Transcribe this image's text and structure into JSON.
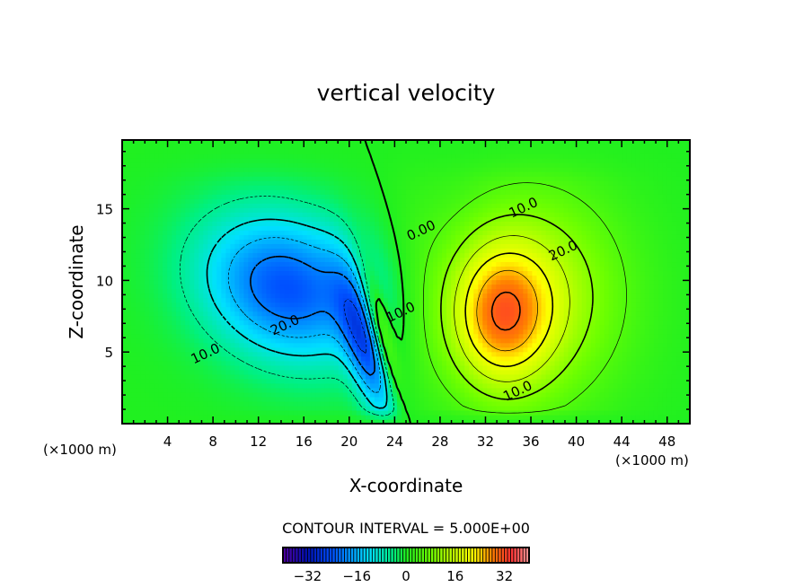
{
  "chart_data": {
    "type": "heatmap",
    "subtype": "filled-contour",
    "title": "vertical velocity",
    "xlabel": "X-coordinate",
    "ylabel": "Z-coordinate",
    "x_unit_label": "(×1000 m)",
    "y_unit_label": "(×1000 m)",
    "xlim": [
      0,
      50
    ],
    "ylim": [
      0,
      19.8
    ],
    "x_ticks": [
      "4",
      "8",
      "12",
      "16",
      "20",
      "24",
      "28",
      "32",
      "36",
      "40",
      "44",
      "48"
    ],
    "y_ticks": [
      "5",
      "10",
      "15"
    ],
    "contour_interval_text": "CONTOUR INTERVAL = 5.000E+00",
    "contour_levels": [
      -25,
      -20,
      -15,
      -10,
      -5,
      0,
      5,
      10,
      15,
      20,
      25,
      30
    ],
    "contour_labels": [
      {
        "text": "10.0",
        "x": 35.5,
        "z": 14.8
      },
      {
        "text": "20.0",
        "x": 39,
        "z": 11.8
      },
      {
        "text": "0.00",
        "x": 26.5,
        "z": 13.2
      },
      {
        "text": "10.0",
        "x": 24.7,
        "z": 7.5
      },
      {
        "text": "20.0",
        "x": 14.5,
        "z": 6.6
      },
      {
        "text": "10.0",
        "x": 7.5,
        "z": 4.6
      },
      {
        "text": "10.0",
        "x": 35,
        "z": 2.0
      }
    ],
    "field_features": [
      {
        "kind": "downdraft",
        "x": 15,
        "z": 9.5,
        "value": -24
      },
      {
        "kind": "downdraft",
        "x": 22,
        "z": 4.5,
        "value": -26
      },
      {
        "kind": "updraft",
        "x": 33,
        "z": 7.5,
        "value": 30
      },
      {
        "kind": "updraft",
        "x": 23.8,
        "z": 5,
        "value": 8
      }
    ],
    "colorbar": {
      "range": [
        -40,
        40
      ],
      "ticks": [
        "−32",
        "−16",
        "0",
        "16",
        "32"
      ],
      "tick_values": [
        -32,
        -16,
        0,
        16,
        32
      ],
      "colormap": "rainbow (purple-blue-cyan-green-yellow-red-pink)"
    },
    "grid": false
  }
}
